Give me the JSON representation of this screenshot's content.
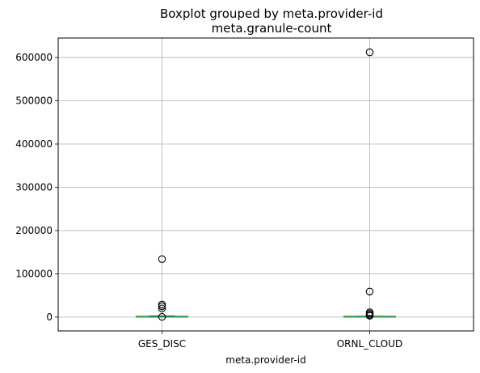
{
  "chart_data": {
    "type": "boxplot",
    "suptitle": "Boxplot grouped by meta.provider-id",
    "title": "meta.granule-count",
    "xlabel": "meta.provider-id",
    "ylabel": "",
    "ylim": [
      -32000,
      645000
    ],
    "yticks": [
      0,
      100000,
      200000,
      300000,
      400000,
      500000,
      600000
    ],
    "ytick_labels": [
      "0",
      "100000",
      "200000",
      "300000",
      "400000",
      "500000",
      "600000"
    ],
    "grid": true,
    "colors": {
      "box": "#1f77b4",
      "median": "#2ca02c",
      "grid": "#b0b0b0",
      "outlier": "#000000"
    },
    "categories": [
      "GES_DISC",
      "ORNL_CLOUD"
    ],
    "boxes": [
      {
        "name": "GES_DISC",
        "whislo": 0,
        "q1": 100,
        "med": 400,
        "q3": 1200,
        "whishi": 2500,
        "fliers": [
          134000,
          29000,
          25000,
          20000,
          400
        ]
      },
      {
        "name": "ORNL_CLOUD",
        "whislo": 0,
        "q1": 100,
        "med": 300,
        "q3": 900,
        "whishi": 2000,
        "fliers": [
          612000,
          59000,
          11000,
          8000,
          5000,
          3000
        ]
      }
    ]
  }
}
